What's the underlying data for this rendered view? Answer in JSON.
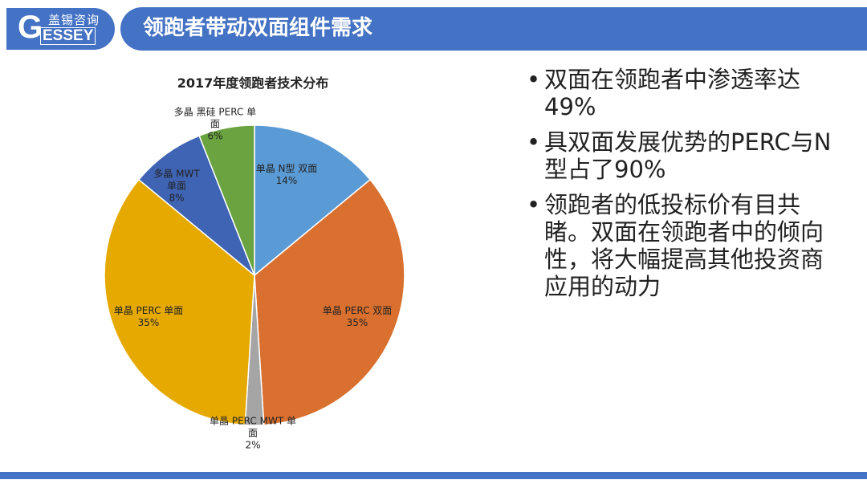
{
  "header": {
    "logo": {
      "cn": "盖锡咨询",
      "en": "ESSEY",
      "g": "G"
    },
    "title": "领跑者带动双面组件需求"
  },
  "bullets": [
    "双面在领跑者中渗透率达49%",
    "具双面发展优势的PERC与N型占了90%",
    "领跑者的低投标价有目共睹。双面在领跑者中的倾向性，将大幅提高其他投资商应用的动力"
  ],
  "chart_data": {
    "type": "pie",
    "title": "2017年度领跑者技术分布",
    "start": "12 o'clock, clockwise",
    "slices": [
      {
        "name": "单晶 N型 双面",
        "value": 14,
        "label": "14%",
        "color": "#5b9bd5"
      },
      {
        "name": "单晶 PERC 双面",
        "value": 35,
        "label": "35%",
        "color": "#d9702f"
      },
      {
        "name": "单晶 PERC MWT 单面",
        "value": 2,
        "label": "2%",
        "color": "#a5a5a5"
      },
      {
        "name": "单晶 PERC 单面",
        "value": 35,
        "label": "35%",
        "color": "#e5a900"
      },
      {
        "name": "多晶 MWT 单面",
        "value": 8,
        "label": "8%",
        "color": "#3f64b4"
      },
      {
        "name": "多晶 黑硅 PERC 单面",
        "value": 6,
        "label": "6%",
        "color": "#6aa33f"
      }
    ]
  }
}
